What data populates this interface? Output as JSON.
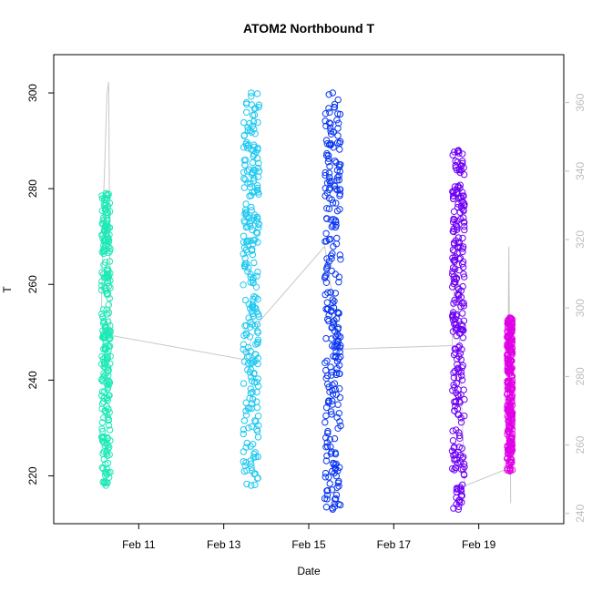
{
  "chart_data": {
    "type": "scatter",
    "title": "ATOM2 Northbound T",
    "xlabel": "Date",
    "ylabel": "T",
    "x_ticks": [
      "Feb 11",
      "Feb 13",
      "Feb 15",
      "Feb 17",
      "Feb 19"
    ],
    "x_tick_dates": [
      "2013-02-11",
      "2013-02-13",
      "2013-02-15",
      "2013-02-17",
      "2013-02-19"
    ],
    "xlim": [
      "2013-02-09",
      "2013-02-21"
    ],
    "ylim": [
      210,
      308
    ],
    "y_ticks": [
      220,
      240,
      260,
      280,
      300
    ],
    "y2_ticks": [
      240,
      260,
      280,
      300,
      320,
      340,
      360
    ],
    "y2lim": [
      237,
      374
    ],
    "grid": false,
    "legend": "none",
    "secondary_line_color": "#c8c8c8",
    "series": [
      {
        "start": "2013-02-10T03:00",
        "end": "2013-02-10T08:00",
        "ymin": 218,
        "ymax": 279,
        "color": "#1de9b6"
      },
      {
        "start": "2013-02-13T11:00",
        "end": "2013-02-13T20:00",
        "ymin": 218,
        "ymax": 300,
        "color": "#1ec8f0"
      },
      {
        "start": "2013-02-15T09:00",
        "end": "2013-02-15T18:00",
        "ymin": 213,
        "ymax": 300,
        "color": "#0a36f0"
      },
      {
        "start": "2013-02-18T09:00",
        "end": "2013-02-18T16:00",
        "ymin": 213,
        "ymax": 288,
        "color": "#6e00f5"
      },
      {
        "start": "2013-02-19T16:00",
        "end": "2013-02-19T19:00",
        "ymin": 221,
        "ymax": 253,
        "color": "#e000e6"
      }
    ],
    "secondary_line": [
      {
        "x": "2013-02-10T03:00",
        "y": 300
      },
      {
        "x": "2013-02-10T04:00",
        "y": 330
      },
      {
        "x": "2013-02-10T05:00",
        "y": 345
      },
      {
        "x": "2013-02-10T06:00",
        "y": 362
      },
      {
        "x": "2013-02-10T07:00",
        "y": 366
      },
      {
        "x": "2013-02-10T08:00",
        "y": 292
      },
      {
        "x": "2013-02-13T11:00",
        "y": 285
      },
      {
        "x": "2013-02-13T20:00",
        "y": 296
      },
      {
        "x": "2013-02-15T09:00",
        "y": 318
      },
      {
        "x": "2013-02-15T18:00",
        "y": 288
      },
      {
        "x": "2013-02-18T09:00",
        "y": 289
      },
      {
        "x": "2013-02-18T11:00",
        "y": 322
      },
      {
        "x": "2013-02-18T16:00",
        "y": 248
      },
      {
        "x": "2013-02-19T16:00",
        "y": 253
      },
      {
        "x": "2013-02-19T17:00",
        "y": 318
      },
      {
        "x": "2013-02-19T18:00",
        "y": 243
      }
    ]
  }
}
